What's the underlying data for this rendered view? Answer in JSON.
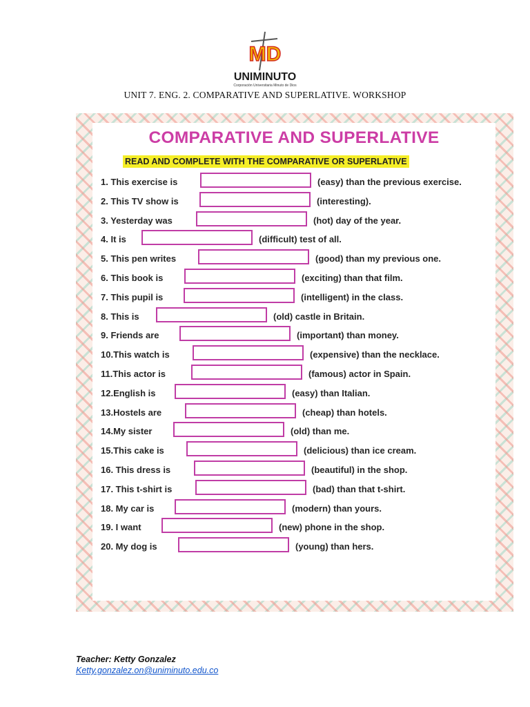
{
  "header": {
    "logo_letters": "MD",
    "logo_name": "UNIMINUTO",
    "logo_subtitle": "Corporación Universitaria Minuto de Dios",
    "unit_title": "UNIT 7. ENG. 2. COMPARATIVE AND SUPERLATIVE. WORKSHOP"
  },
  "worksheet": {
    "title": "COMPARATIVE AND SUPERLATIVE",
    "instruction": "READ AND COMPLETE WITH THE COMPARATIVE OR SUPERLATIVE",
    "items": [
      {
        "prefix": "1. This exercise is",
        "suffix": "(easy) than the previous exercise."
      },
      {
        "prefix": "2. This TV show is",
        "suffix": "(interesting)."
      },
      {
        "prefix": "3. Yesterday was",
        "suffix": "(hot) day of the year."
      },
      {
        "prefix": "4. It is",
        "suffix": "(difficult) test of all."
      },
      {
        "prefix": "5. This pen writes",
        "suffix": "(good) than my previous one."
      },
      {
        "prefix": "6. This book is",
        "suffix": "(exciting) than that film."
      },
      {
        "prefix": "7. This pupil is",
        "suffix": "(intelligent) in the class."
      },
      {
        "prefix": "8. This is",
        "suffix": "(old) castle in Britain."
      },
      {
        "prefix": "9. Friends are",
        "suffix": "(important) than money."
      },
      {
        "prefix": "10.This watch is",
        "suffix": "(expensive) than the necklace."
      },
      {
        "prefix": "11.This actor is",
        "suffix": "(famous) actor in Spain."
      },
      {
        "prefix": "12.English is",
        "suffix": "(easy) than Italian."
      },
      {
        "prefix": "13.Hostels are",
        "suffix": "(cheap) than hotels."
      },
      {
        "prefix": "14.My sister",
        "suffix": "(old) than me."
      },
      {
        "prefix": "15.This cake is",
        "suffix": "(delicious) than ice cream."
      },
      {
        "prefix": "16. This dress is",
        "suffix": "(beautiful) in the shop."
      },
      {
        "prefix": "17. This t-shirt is",
        "suffix": "(bad) than that t-shirt."
      },
      {
        "prefix": "18. My car is",
        "suffix": "(modern) than yours."
      },
      {
        "prefix": "19. I want",
        "suffix": "(new) phone in the shop."
      },
      {
        "prefix": "20. My dog is",
        "suffix": "(young) than hers."
      }
    ]
  },
  "footer": {
    "teacher": "Teacher: Ketty Gonzalez",
    "email": "Ketty.gonzalez.on@uniminuto.edu.co"
  },
  "colors": {
    "title": "#cc3da5",
    "box_border": "#c03ca5",
    "highlight": "#f5ee27",
    "logo_yellow": "#f2b705",
    "logo_red": "#d42a1e",
    "link": "#1155cc"
  }
}
